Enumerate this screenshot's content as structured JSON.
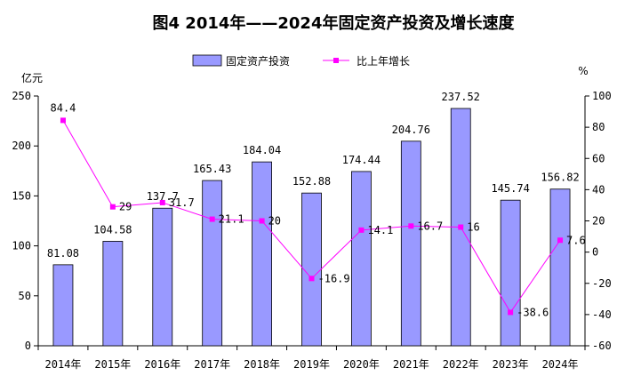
{
  "chart_data": {
    "type": "bar+line",
    "title": "图4  2014年——2024年固定资产投资及增长速度",
    "categories": [
      "2014年",
      "2015年",
      "2016年",
      "2017年",
      "2018年",
      "2019年",
      "2020年",
      "2021年",
      "2022年",
      "2023年",
      "2024年"
    ],
    "series": [
      {
        "name": "固定资产投资",
        "type": "bar",
        "axis": "left",
        "color": "#9999ff",
        "values": [
          81.08,
          104.58,
          137.7,
          165.43,
          184.04,
          152.88,
          174.44,
          204.76,
          237.52,
          145.74,
          156.82
        ],
        "labels": [
          "81.08",
          "104.58",
          "137.7",
          "165.43",
          "184.04",
          "152.88",
          "174.44",
          "204.76",
          "237.52",
          "145.74",
          "156.82"
        ]
      },
      {
        "name": "比上年增长",
        "type": "line",
        "axis": "right",
        "color": "#ff00ff",
        "values": [
          84.4,
          29,
          31.7,
          21.1,
          20,
          -16.9,
          14.1,
          16.7,
          16,
          -38.6,
          7.6
        ],
        "labels": [
          "84.4",
          "29",
          "31.7",
          "21.1",
          "20",
          "-16.9",
          "14.1",
          "16.7",
          "16",
          "-38.6",
          "7.6"
        ]
      }
    ],
    "left_axis": {
      "unit": "亿元",
      "ylim": [
        0,
        250
      ],
      "ticks": [
        0,
        50,
        100,
        150,
        200,
        250
      ],
      "tick_labels": [
        "0",
        "50",
        "100",
        "150",
        "200",
        "250"
      ]
    },
    "right_axis": {
      "unit": "%",
      "ylim": [
        -60,
        100
      ],
      "ticks": [
        -60,
        -40,
        -20,
        0,
        20,
        40,
        60,
        80,
        100
      ],
      "tick_labels": [
        "-60",
        "-40",
        "-20",
        "0",
        "20",
        "40",
        "60",
        "80",
        "100"
      ]
    },
    "grid": false,
    "legend_position": "top-center"
  }
}
